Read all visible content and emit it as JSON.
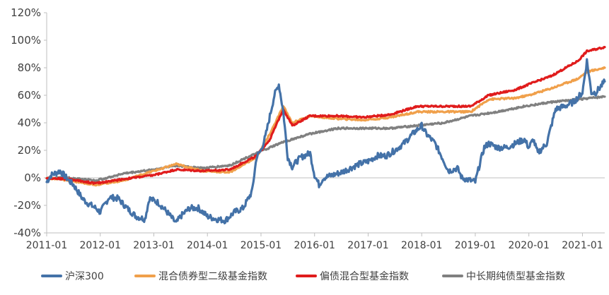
{
  "chart_data": {
    "type": "line",
    "title": "",
    "xlabel": "",
    "ylabel": "",
    "ylim": [
      -40,
      120
    ],
    "xlim": [
      "2011-01",
      "2021-06"
    ],
    "y_ticks": [
      "-40%",
      "-20%",
      "0%",
      "20%",
      "40%",
      "60%",
      "80%",
      "100%",
      "120%"
    ],
    "y_tick_values": [
      -40,
      -20,
      0,
      20,
      40,
      60,
      80,
      100,
      120
    ],
    "x_ticks": [
      "2011-01",
      "2012-01",
      "2013-01",
      "2014-01",
      "2015-01",
      "2016-01",
      "2017-01",
      "2018-01",
      "2019-01",
      "2020-01",
      "2021-01"
    ],
    "grid": false,
    "legend_position": "bottom",
    "series": [
      {
        "name": "沪深300",
        "color": "#4472a8",
        "x": [
          "2011-01",
          "2011-02",
          "2011-04",
          "2011-06",
          "2011-07",
          "2011-09",
          "2011-10",
          "2011-12",
          "2012-01",
          "2012-03",
          "2012-05",
          "2012-07",
          "2012-09",
          "2012-11",
          "2012-12",
          "2013-02",
          "2013-04",
          "2013-06",
          "2013-07",
          "2013-09",
          "2013-11",
          "2014-01",
          "2014-03",
          "2014-05",
          "2014-07",
          "2014-09",
          "2014-11",
          "2014-12",
          "2015-01",
          "2015-02",
          "2015-03",
          "2015-04",
          "2015-05",
          "2015-06",
          "2015-07",
          "2015-08",
          "2015-09",
          "2015-10",
          "2015-12",
          "2016-01",
          "2016-02",
          "2016-03",
          "2016-05",
          "2016-07",
          "2016-09",
          "2016-11",
          "2017-01",
          "2017-03",
          "2017-05",
          "2017-07",
          "2017-09",
          "2017-11",
          "2018-01",
          "2018-02",
          "2018-04",
          "2018-06",
          "2018-07",
          "2018-09",
          "2018-10",
          "2018-12",
          "2019-01",
          "2019-02",
          "2019-03",
          "2019-04",
          "2019-06",
          "2019-08",
          "2019-10",
          "2019-12",
          "2020-01",
          "2020-02",
          "2020-03",
          "2020-05",
          "2020-07",
          "2020-09",
          "2020-11",
          "2021-01",
          "2021-02",
          "2021-03",
          "2021-04",
          "2021-06"
        ],
        "values": [
          -3,
          2,
          5,
          -2,
          -5,
          -15,
          -18,
          -22,
          -25,
          -14,
          -15,
          -22,
          -28,
          -30,
          -15,
          -18,
          -25,
          -33,
          -28,
          -22,
          -22,
          -28,
          -30,
          -31,
          -25,
          -22,
          -10,
          15,
          20,
          30,
          45,
          60,
          68,
          48,
          15,
          8,
          12,
          15,
          18,
          2,
          -5,
          0,
          2,
          4,
          7,
          10,
          12,
          16,
          16,
          20,
          25,
          32,
          38,
          32,
          25,
          12,
          5,
          7,
          0,
          -2,
          -3,
          10,
          22,
          25,
          22,
          22,
          25,
          28,
          22,
          28,
          18,
          25,
          50,
          52,
          55,
          62,
          85,
          62,
          62,
          70
        ]
      },
      {
        "name": "混合债券型二级基金指数",
        "color": "#f0a04b",
        "x": [
          "2011-01",
          "2011-06",
          "2011-12",
          "2012-06",
          "2013-01",
          "2013-06",
          "2013-12",
          "2014-06",
          "2014-12",
          "2015-03",
          "2015-06",
          "2015-08",
          "2015-12",
          "2016-06",
          "2016-12",
          "2017-06",
          "2017-12",
          "2018-06",
          "2018-12",
          "2019-04",
          "2019-10",
          "2020-01",
          "2020-06",
          "2020-12",
          "2021-02",
          "2021-06"
        ],
        "values": [
          0,
          -2,
          -5,
          -2,
          5,
          10,
          5,
          4,
          15,
          32,
          52,
          40,
          45,
          43,
          42,
          44,
          48,
          48,
          48,
          57,
          58,
          60,
          65,
          72,
          77,
          80
        ]
      },
      {
        "name": "偏债混合型基金指数",
        "color": "#e01c1c",
        "x": [
          "2011-01",
          "2011-06",
          "2011-12",
          "2012-06",
          "2013-01",
          "2013-06",
          "2013-12",
          "2014-06",
          "2014-12",
          "2015-03",
          "2015-06",
          "2015-08",
          "2015-12",
          "2016-06",
          "2016-12",
          "2017-06",
          "2017-12",
          "2018-06",
          "2018-12",
          "2019-04",
          "2019-10",
          "2020-01",
          "2020-06",
          "2020-12",
          "2021-02",
          "2021-06"
        ],
        "values": [
          0,
          -1,
          -4,
          -1,
          2,
          6,
          5,
          6,
          16,
          28,
          50,
          38,
          45,
          45,
          44,
          46,
          52,
          52,
          52,
          60,
          64,
          68,
          74,
          85,
          92,
          95
        ]
      },
      {
        "name": "中长期纯债型基金指数",
        "color": "#808080",
        "x": [
          "2011-01",
          "2011-06",
          "2011-12",
          "2012-06",
          "2013-01",
          "2013-06",
          "2013-12",
          "2014-06",
          "2014-12",
          "2015-06",
          "2015-12",
          "2016-06",
          "2016-12",
          "2017-06",
          "2017-12",
          "2018-06",
          "2018-12",
          "2019-06",
          "2019-12",
          "2020-06",
          "2020-12",
          "2021-06"
        ],
        "values": [
          0,
          0,
          -2,
          3,
          6,
          9,
          7,
          9,
          18,
          26,
          32,
          36,
          36,
          36,
          38,
          40,
          45,
          48,
          52,
          55,
          57,
          59
        ]
      }
    ]
  }
}
